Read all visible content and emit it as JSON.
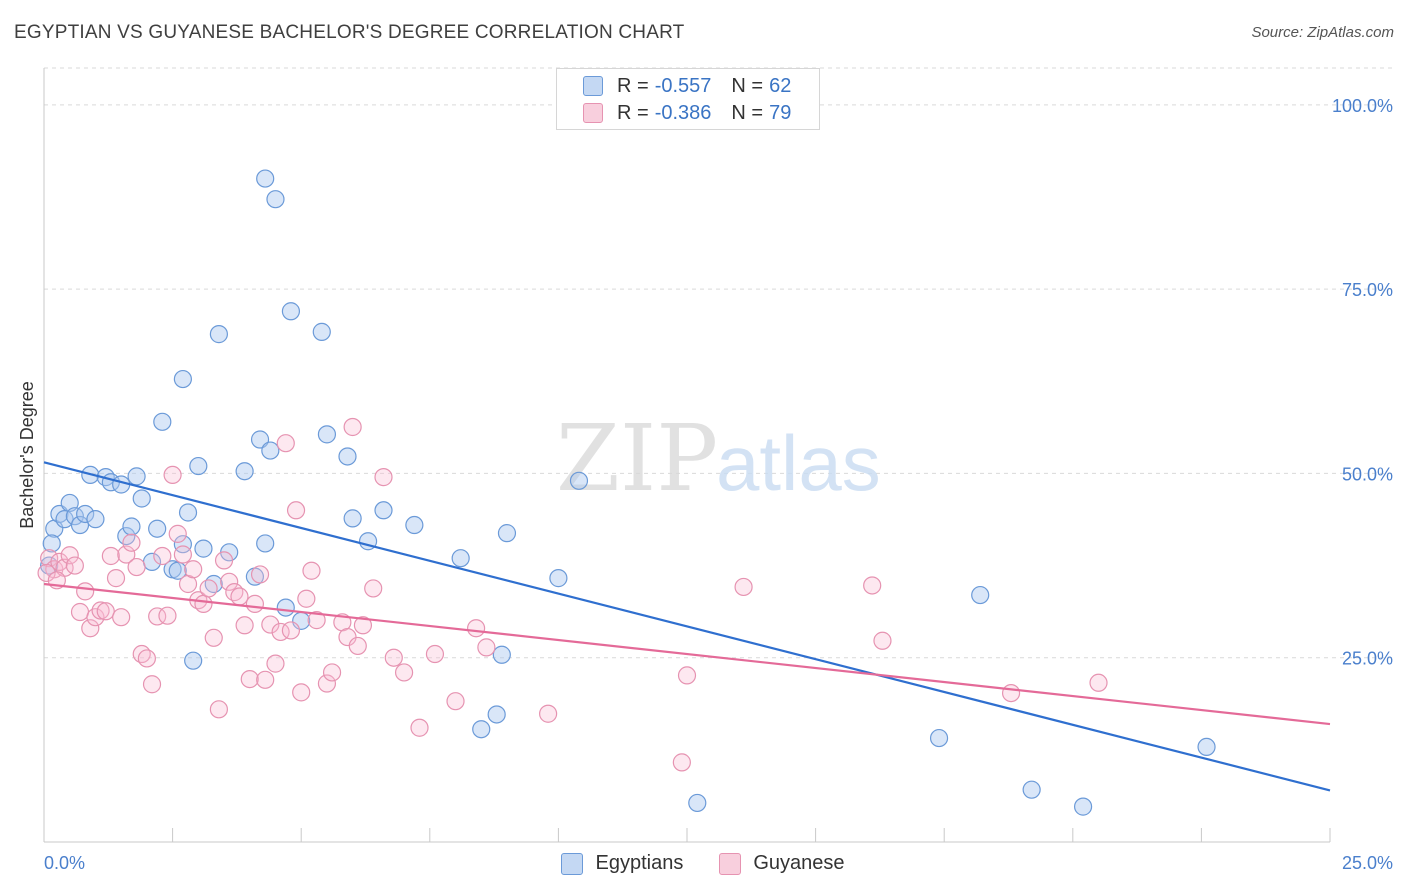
{
  "header": {
    "title": "EGYPTIAN VS GUYANESE BACHELOR'S DEGREE CORRELATION CHART",
    "source": "Source: ZipAtlas.com"
  },
  "watermark": {
    "zip": "ZIP",
    "atlas": "atlas"
  },
  "legend_top": {
    "rows": [
      {
        "r_label": "R =",
        "r_value": "-0.557",
        "n_label": "N =",
        "n_value": "62",
        "color": "#5b8fd6"
      },
      {
        "r_label": "R =",
        "r_value": "-0.386",
        "n_label": "N =",
        "n_value": "79",
        "color": "#e58aa9"
      }
    ]
  },
  "legend_bottom": {
    "items": [
      {
        "label": "Egyptians",
        "color": "#5b8fd6"
      },
      {
        "label": "Guyanese",
        "color": "#e58aa9"
      }
    ]
  },
  "chart_data": {
    "type": "scatter",
    "title": "EGYPTIAN VS GUYANESE BACHELOR'S DEGREE CORRELATION CHART",
    "ylabel": "Bachelor's Degree",
    "xlabel": "",
    "xlim": [
      0,
      25
    ],
    "ylim": [
      0,
      105
    ],
    "x_tick_labels": [
      "0.0%",
      "25.0%"
    ],
    "y_tick_labels": [
      "25.0%",
      "50.0%",
      "75.0%",
      "100.0%"
    ],
    "y_ticks": [
      25,
      50,
      75,
      100
    ],
    "grid": "horizontal dashed",
    "legend_position": "top-center",
    "series": [
      {
        "name": "Egyptians",
        "color": "#5b8fd6",
        "trend": {
          "x": [
            0,
            25
          ],
          "y": [
            51.5,
            7.0
          ]
        },
        "points": [
          [
            0.2,
            42.5
          ],
          [
            0.3,
            44.5
          ],
          [
            0.4,
            43.8
          ],
          [
            0.5,
            46.0
          ],
          [
            0.6,
            44.2
          ],
          [
            0.7,
            43.0
          ],
          [
            0.8,
            44.5
          ],
          [
            0.9,
            49.8
          ],
          [
            1.0,
            43.8
          ],
          [
            1.2,
            49.5
          ],
          [
            1.3,
            48.8
          ],
          [
            1.5,
            48.5
          ],
          [
            1.6,
            41.5
          ],
          [
            1.7,
            42.8
          ],
          [
            1.8,
            49.6
          ],
          [
            1.9,
            46.6
          ],
          [
            2.1,
            38.0
          ],
          [
            2.2,
            42.5
          ],
          [
            2.3,
            57.0
          ],
          [
            2.5,
            37.0
          ],
          [
            2.6,
            36.8
          ],
          [
            2.7,
            40.4
          ],
          [
            2.7,
            62.8
          ],
          [
            2.8,
            44.7
          ],
          [
            2.9,
            24.6
          ],
          [
            3.0,
            51.0
          ],
          [
            3.1,
            39.8
          ],
          [
            3.3,
            35.0
          ],
          [
            3.4,
            68.9
          ],
          [
            3.6,
            39.3
          ],
          [
            3.9,
            50.3
          ],
          [
            4.1,
            36.0
          ],
          [
            4.2,
            54.6
          ],
          [
            4.3,
            40.5
          ],
          [
            4.3,
            90.0
          ],
          [
            4.4,
            53.1
          ],
          [
            4.5,
            87.2
          ],
          [
            4.7,
            31.8
          ],
          [
            4.8,
            72.0
          ],
          [
            5.0,
            30.0
          ],
          [
            5.4,
            69.2
          ],
          [
            5.5,
            55.3
          ],
          [
            5.9,
            52.3
          ],
          [
            6.0,
            43.9
          ],
          [
            6.3,
            40.8
          ],
          [
            6.6,
            45.0
          ],
          [
            7.2,
            43.0
          ],
          [
            8.1,
            38.5
          ],
          [
            8.5,
            15.3
          ],
          [
            8.8,
            17.3
          ],
          [
            8.9,
            25.4
          ],
          [
            9.0,
            41.9
          ],
          [
            10.0,
            35.8
          ],
          [
            10.4,
            49.0
          ],
          [
            12.7,
            5.3
          ],
          [
            17.4,
            14.1
          ],
          [
            18.2,
            33.5
          ],
          [
            19.2,
            7.1
          ],
          [
            20.2,
            4.8
          ],
          [
            22.6,
            12.9
          ],
          [
            0.1,
            37.5
          ],
          [
            0.15,
            40.5
          ]
        ]
      },
      {
        "name": "Guyanese",
        "color": "#e58aa9",
        "trend": {
          "x": [
            0,
            25
          ],
          "y": [
            35.0,
            16.0
          ]
        },
        "points": [
          [
            0.1,
            38.5
          ],
          [
            0.2,
            37.0
          ],
          [
            0.3,
            38.0
          ],
          [
            0.4,
            37.2
          ],
          [
            0.5,
            38.9
          ],
          [
            0.6,
            37.5
          ],
          [
            0.7,
            31.2
          ],
          [
            0.8,
            34.0
          ],
          [
            0.9,
            29.0
          ],
          [
            1.0,
            30.5
          ],
          [
            1.1,
            31.4
          ],
          [
            1.2,
            31.3
          ],
          [
            1.3,
            38.8
          ],
          [
            1.4,
            35.8
          ],
          [
            1.5,
            30.5
          ],
          [
            1.6,
            39.0
          ],
          [
            1.7,
            40.6
          ],
          [
            1.8,
            37.3
          ],
          [
            1.9,
            25.5
          ],
          [
            2.0,
            24.9
          ],
          [
            2.1,
            21.4
          ],
          [
            2.2,
            30.6
          ],
          [
            2.3,
            38.8
          ],
          [
            2.4,
            30.7
          ],
          [
            2.5,
            49.8
          ],
          [
            2.6,
            41.8
          ],
          [
            2.7,
            39.0
          ],
          [
            2.8,
            35.0
          ],
          [
            2.9,
            37.0
          ],
          [
            3.0,
            32.8
          ],
          [
            3.1,
            32.3
          ],
          [
            3.2,
            34.4
          ],
          [
            3.3,
            27.7
          ],
          [
            3.4,
            18.0
          ],
          [
            3.5,
            38.2
          ],
          [
            3.6,
            35.3
          ],
          [
            3.7,
            33.9
          ],
          [
            3.8,
            33.3
          ],
          [
            3.9,
            29.4
          ],
          [
            4.0,
            22.1
          ],
          [
            4.1,
            32.3
          ],
          [
            4.2,
            36.3
          ],
          [
            4.3,
            22.0
          ],
          [
            4.4,
            29.5
          ],
          [
            4.5,
            24.2
          ],
          [
            4.6,
            28.5
          ],
          [
            4.7,
            54.1
          ],
          [
            4.8,
            28.7
          ],
          [
            4.9,
            45.0
          ],
          [
            5.0,
            20.3
          ],
          [
            5.1,
            33.0
          ],
          [
            5.2,
            36.8
          ],
          [
            5.3,
            30.1
          ],
          [
            5.5,
            21.5
          ],
          [
            5.6,
            23.0
          ],
          [
            5.8,
            29.8
          ],
          [
            5.9,
            27.8
          ],
          [
            6.0,
            56.3
          ],
          [
            6.1,
            26.6
          ],
          [
            6.2,
            29.4
          ],
          [
            6.4,
            34.4
          ],
          [
            6.6,
            49.5
          ],
          [
            6.8,
            25.0
          ],
          [
            7.0,
            23.0
          ],
          [
            7.3,
            15.5
          ],
          [
            7.6,
            25.5
          ],
          [
            8.0,
            19.1
          ],
          [
            8.4,
            29.0
          ],
          [
            8.6,
            26.4
          ],
          [
            9.8,
            17.4
          ],
          [
            12.4,
            10.8
          ],
          [
            12.5,
            22.6
          ],
          [
            13.6,
            34.6
          ],
          [
            16.1,
            34.8
          ],
          [
            16.3,
            27.3
          ],
          [
            18.8,
            20.2
          ],
          [
            20.5,
            21.6
          ],
          [
            0.05,
            36.5
          ],
          [
            0.25,
            35.5
          ]
        ]
      }
    ]
  }
}
